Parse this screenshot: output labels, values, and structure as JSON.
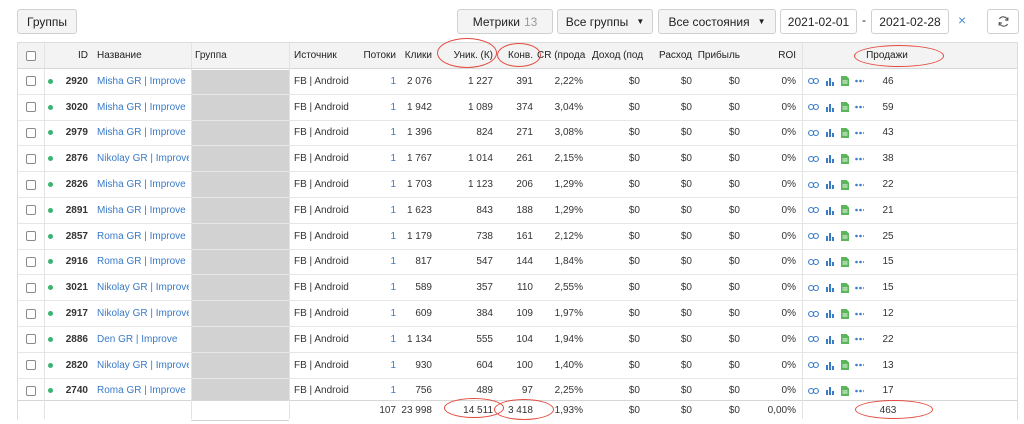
{
  "toolbar": {
    "groups_label": "Группы",
    "metrics_label": "Метрики",
    "metrics_count": "13",
    "all_groups_label": "Все группы",
    "all_states_label": "Все состояния",
    "date_from": "2021-02-01",
    "date_separator": "-",
    "date_to": "2021-02-28",
    "clear_label": "×"
  },
  "columns": {
    "id": "ID",
    "name": "Название",
    "group": "Группа",
    "source": "Источник",
    "streams": "Потоки",
    "clicks": "Клики",
    "unique": "Уник. (К)",
    "conv": "Конв.",
    "cr": "CR (прода",
    "income": "Доход (под",
    "expense": "Расход",
    "profit": "Прибыль",
    "roi": "ROI",
    "sales": "Продажи"
  },
  "rows": [
    {
      "id": "2920",
      "name": "Misha GR | Improve",
      "source": "FB | Android",
      "streams": "1",
      "clicks": "2 076",
      "unique": "1 227",
      "conv": "391",
      "cr": "2,22%",
      "income": "$0",
      "expense": "$0",
      "profit": "$0",
      "roi": "0%",
      "sales": "46"
    },
    {
      "id": "3020",
      "name": "Misha GR | Improve",
      "source": "FB | Android",
      "streams": "1",
      "clicks": "1 942",
      "unique": "1 089",
      "conv": "374",
      "cr": "3,04%",
      "income": "$0",
      "expense": "$0",
      "profit": "$0",
      "roi": "0%",
      "sales": "59"
    },
    {
      "id": "2979",
      "name": "Misha GR | Improve",
      "source": "FB | Android",
      "streams": "1",
      "clicks": "1 396",
      "unique": "824",
      "conv": "271",
      "cr": "3,08%",
      "income": "$0",
      "expense": "$0",
      "profit": "$0",
      "roi": "0%",
      "sales": "43"
    },
    {
      "id": "2876",
      "name": "Nikolay GR | Improve",
      "source": "FB | Android",
      "streams": "1",
      "clicks": "1 767",
      "unique": "1 014",
      "conv": "261",
      "cr": "2,15%",
      "income": "$0",
      "expense": "$0",
      "profit": "$0",
      "roi": "0%",
      "sales": "38"
    },
    {
      "id": "2826",
      "name": "Misha GR | Improve",
      "source": "FB | Android",
      "streams": "1",
      "clicks": "1 703",
      "unique": "1 123",
      "conv": "206",
      "cr": "1,29%",
      "income": "$0",
      "expense": "$0",
      "profit": "$0",
      "roi": "0%",
      "sales": "22"
    },
    {
      "id": "2891",
      "name": "Misha GR | Improve",
      "source": "FB | Android",
      "streams": "1",
      "clicks": "1 623",
      "unique": "843",
      "conv": "188",
      "cr": "1,29%",
      "income": "$0",
      "expense": "$0",
      "profit": "$0",
      "roi": "0%",
      "sales": "21"
    },
    {
      "id": "2857",
      "name": "Roma GR | Improve",
      "source": "FB | Android",
      "streams": "1",
      "clicks": "1 179",
      "unique": "738",
      "conv": "161",
      "cr": "2,12%",
      "income": "$0",
      "expense": "$0",
      "profit": "$0",
      "roi": "0%",
      "sales": "25"
    },
    {
      "id": "2916",
      "name": "Roma GR | Improve",
      "source": "FB | Android",
      "streams": "1",
      "clicks": "817",
      "unique": "547",
      "conv": "144",
      "cr": "1,84%",
      "income": "$0",
      "expense": "$0",
      "profit": "$0",
      "roi": "0%",
      "sales": "15"
    },
    {
      "id": "3021",
      "name": "Nikolay GR | Improve",
      "source": "FB | Android",
      "streams": "1",
      "clicks": "589",
      "unique": "357",
      "conv": "110",
      "cr": "2,55%",
      "income": "$0",
      "expense": "$0",
      "profit": "$0",
      "roi": "0%",
      "sales": "15"
    },
    {
      "id": "2917",
      "name": "Nikolay GR | Improve",
      "source": "FB | Android",
      "streams": "1",
      "clicks": "609",
      "unique": "384",
      "conv": "109",
      "cr": "1,97%",
      "income": "$0",
      "expense": "$0",
      "profit": "$0",
      "roi": "0%",
      "sales": "12"
    },
    {
      "id": "2886",
      "name": "Den GR | Improve",
      "source": "FB | Android",
      "streams": "1",
      "clicks": "1 134",
      "unique": "555",
      "conv": "104",
      "cr": "1,94%",
      "income": "$0",
      "expense": "$0",
      "profit": "$0",
      "roi": "0%",
      "sales": "22"
    },
    {
      "id": "2820",
      "name": "Nikolay GR | Improve",
      "source": "FB | Android",
      "streams": "1",
      "clicks": "930",
      "unique": "604",
      "conv": "100",
      "cr": "1,40%",
      "income": "$0",
      "expense": "$0",
      "profit": "$0",
      "roi": "0%",
      "sales": "13"
    },
    {
      "id": "2740",
      "name": "Roma GR | Improve",
      "source": "FB | Android",
      "streams": "1",
      "clicks": "756",
      "unique": "489",
      "conv": "97",
      "cr": "2,25%",
      "income": "$0",
      "expense": "$0",
      "profit": "$0",
      "roi": "0%",
      "sales": "17"
    }
  ],
  "totals": {
    "streams": "107",
    "clicks": "23 998",
    "unique": "14 511",
    "conv": "3 418",
    "cr": "1,93%",
    "income": "$0",
    "expense": "$0",
    "profit": "$0",
    "roi": "0,00%",
    "sales": "463"
  },
  "colors": {
    "link": "#3a7bc8",
    "status_dot": "#3cb371",
    "annotation": "#e34a3e",
    "header_bg": "#f3f3f3"
  },
  "icons": [
    "link-icon",
    "chart-icon",
    "document-icon",
    "more-icon"
  ]
}
